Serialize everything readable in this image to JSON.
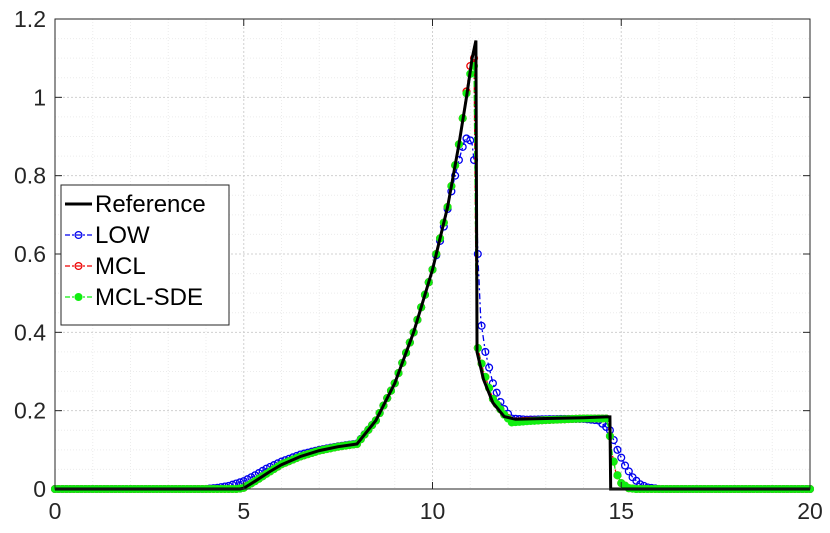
{
  "chart_data": {
    "type": "line",
    "title": "",
    "xlabel": "",
    "ylabel": "",
    "xlim": [
      0,
      20
    ],
    "ylim": [
      0,
      1.2
    ],
    "xticks": [
      0,
      5,
      10,
      15,
      20
    ],
    "yticks": [
      0,
      0.2,
      0.4,
      0.6,
      0.8,
      1,
      1.2
    ],
    "xtick_labels": [
      "0",
      "5",
      "10",
      "15",
      "20"
    ],
    "ytick_labels": [
      "0",
      "0.2",
      "0.4",
      "0.6",
      "0.8",
      "1",
      "1.2"
    ],
    "grid": true,
    "legend_position": "middle-left",
    "series": [
      {
        "name": "Reference",
        "color": "#000000",
        "style": "solid",
        "marker": "none",
        "points": [
          [
            0,
            0
          ],
          [
            4.9,
            0
          ],
          [
            5.0,
            0.002
          ],
          [
            5.3,
            0.02
          ],
          [
            5.7,
            0.045
          ],
          [
            6.0,
            0.062
          ],
          [
            6.5,
            0.083
          ],
          [
            7.0,
            0.098
          ],
          [
            7.5,
            0.108
          ],
          [
            8.0,
            0.115
          ],
          [
            8.5,
            0.175
          ],
          [
            9.0,
            0.27
          ],
          [
            9.5,
            0.4
          ],
          [
            10.0,
            0.56
          ],
          [
            10.4,
            0.72
          ],
          [
            10.7,
            0.88
          ],
          [
            10.9,
            1.0
          ],
          [
            11.05,
            1.1
          ],
          [
            11.15,
            1.145
          ],
          [
            11.18,
            0.35
          ],
          [
            11.35,
            0.28
          ],
          [
            11.6,
            0.22
          ],
          [
            11.9,
            0.185
          ],
          [
            12.2,
            0.178
          ],
          [
            13.0,
            0.18
          ],
          [
            14.0,
            0.182
          ],
          [
            14.6,
            0.184
          ],
          [
            14.7,
            0.184
          ],
          [
            14.72,
            0.0
          ],
          [
            20,
            0
          ]
        ]
      },
      {
        "name": "LOW",
        "color": "#0000ee",
        "style": "dashdot",
        "marker": "circle",
        "points": [
          [
            0,
            0
          ],
          [
            4.0,
            0
          ],
          [
            4.3,
            0.003
          ],
          [
            4.6,
            0.008
          ],
          [
            5.0,
            0.02
          ],
          [
            5.3,
            0.035
          ],
          [
            5.6,
            0.052
          ],
          [
            6.0,
            0.07
          ],
          [
            6.5,
            0.088
          ],
          [
            7.0,
            0.1
          ],
          [
            7.5,
            0.109
          ],
          [
            8.0,
            0.116
          ],
          [
            8.5,
            0.175
          ],
          [
            9.0,
            0.27
          ],
          [
            9.5,
            0.4
          ],
          [
            10.0,
            0.56
          ],
          [
            10.3,
            0.67
          ],
          [
            10.5,
            0.76
          ],
          [
            10.7,
            0.84
          ],
          [
            10.85,
            0.89
          ],
          [
            10.95,
            0.9
          ],
          [
            11.05,
            0.88
          ],
          [
            11.15,
            0.8
          ],
          [
            11.2,
            0.6
          ],
          [
            11.28,
            0.43
          ],
          [
            11.4,
            0.35
          ],
          [
            11.6,
            0.27
          ],
          [
            11.85,
            0.21
          ],
          [
            12.1,
            0.18
          ],
          [
            12.5,
            0.177
          ],
          [
            13.0,
            0.178
          ],
          [
            13.5,
            0.179
          ],
          [
            14.0,
            0.179
          ],
          [
            14.4,
            0.175
          ],
          [
            14.7,
            0.15
          ],
          [
            14.9,
            0.1
          ],
          [
            15.1,
            0.06
          ],
          [
            15.3,
            0.03
          ],
          [
            15.5,
            0.012
          ],
          [
            15.7,
            0.004
          ],
          [
            16.0,
            0
          ],
          [
            20,
            0
          ]
        ]
      },
      {
        "name": "MCL",
        "color": "#ee0000",
        "style": "dashdot",
        "marker": "circle",
        "points": [
          [
            0,
            0
          ],
          [
            4.85,
            0
          ],
          [
            5.0,
            0.003
          ],
          [
            5.3,
            0.02
          ],
          [
            5.7,
            0.045
          ],
          [
            6.0,
            0.063
          ],
          [
            6.5,
            0.083
          ],
          [
            7.0,
            0.098
          ],
          [
            7.5,
            0.108
          ],
          [
            8.0,
            0.115
          ],
          [
            8.5,
            0.175
          ],
          [
            9.0,
            0.27
          ],
          [
            9.5,
            0.4
          ],
          [
            10.0,
            0.56
          ],
          [
            10.4,
            0.72
          ],
          [
            10.7,
            0.88
          ],
          [
            10.85,
            0.98
          ],
          [
            10.95,
            1.05
          ],
          [
            11.05,
            1.11
          ],
          [
            11.1,
            1.1
          ],
          [
            11.15,
            0.55
          ],
          [
            11.2,
            0.36
          ],
          [
            11.35,
            0.3
          ],
          [
            11.6,
            0.23
          ],
          [
            11.9,
            0.19
          ],
          [
            12.1,
            0.172
          ],
          [
            12.5,
            0.174
          ],
          [
            13.0,
            0.176
          ],
          [
            14.0,
            0.18
          ],
          [
            14.6,
            0.18
          ],
          [
            14.68,
            0.15
          ],
          [
            14.76,
            0.09
          ],
          [
            14.85,
            0.045
          ],
          [
            15.0,
            0.015
          ],
          [
            15.2,
            0.002
          ],
          [
            15.4,
            0
          ],
          [
            20,
            0
          ]
        ]
      },
      {
        "name": "MCL-SDE",
        "color": "#11ee11",
        "style": "dashdot",
        "marker": "circle",
        "points": [
          [
            0,
            0
          ],
          [
            4.85,
            0
          ],
          [
            5.0,
            0.003
          ],
          [
            5.3,
            0.02
          ],
          [
            5.7,
            0.045
          ],
          [
            6.0,
            0.063
          ],
          [
            6.5,
            0.083
          ],
          [
            7.0,
            0.098
          ],
          [
            7.5,
            0.108
          ],
          [
            8.0,
            0.115
          ],
          [
            8.5,
            0.175
          ],
          [
            9.0,
            0.27
          ],
          [
            9.5,
            0.4
          ],
          [
            10.0,
            0.56
          ],
          [
            10.4,
            0.72
          ],
          [
            10.7,
            0.88
          ],
          [
            10.85,
            0.98
          ],
          [
            10.95,
            1.04
          ],
          [
            11.05,
            1.08
          ],
          [
            11.1,
            1.08
          ],
          [
            11.15,
            0.55
          ],
          [
            11.2,
            0.36
          ],
          [
            11.35,
            0.3
          ],
          [
            11.6,
            0.23
          ],
          [
            11.9,
            0.19
          ],
          [
            12.1,
            0.17
          ],
          [
            12.5,
            0.173
          ],
          [
            13.0,
            0.176
          ],
          [
            14.0,
            0.18
          ],
          [
            14.6,
            0.18
          ],
          [
            14.68,
            0.15
          ],
          [
            14.76,
            0.09
          ],
          [
            14.85,
            0.045
          ],
          [
            15.0,
            0.015
          ],
          [
            15.2,
            0.002
          ],
          [
            15.4,
            0
          ],
          [
            20,
            0
          ]
        ]
      }
    ]
  }
}
